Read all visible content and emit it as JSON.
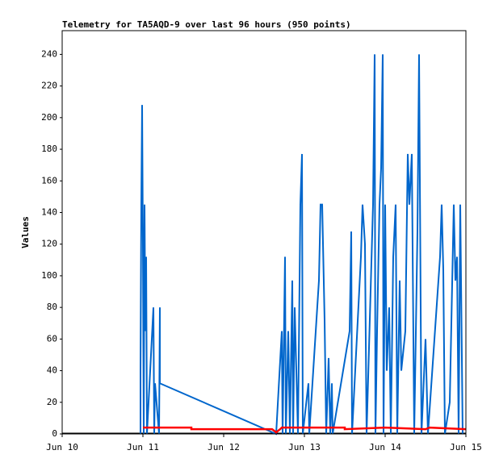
{
  "chart_data": {
    "type": "line",
    "title": "Telemetry for TA5AQD-9 over last 96 hours (950 points)",
    "y_label": "Values",
    "xlim": [
      10,
      15
    ],
    "xticks": [
      {
        "value": 10,
        "label": "Jun 10"
      },
      {
        "value": 11,
        "label": "Jun 11"
      },
      {
        "value": 12,
        "label": "Jun 12"
      },
      {
        "value": 13,
        "label": "Jun 13"
      },
      {
        "value": 14,
        "label": "Jun 14"
      },
      {
        "value": 15,
        "label": "Jun 15"
      }
    ],
    "ylim": [
      0,
      255
    ],
    "yticks": [
      0,
      20,
      40,
      60,
      80,
      100,
      120,
      140,
      160,
      180,
      200,
      220,
      240
    ],
    "grid": false,
    "series": [
      {
        "color": "#0066cc",
        "x": [
          10.97,
          10.97,
          10.98,
          10.99,
          11.0,
          11.01,
          11.02,
          11.03,
          11.04,
          11.05,
          11.13,
          11.14,
          11.15,
          11.2,
          11.21,
          11.21,
          12.65,
          12.72,
          12.73,
          12.76,
          12.77,
          12.8,
          12.82,
          12.85,
          12.86,
          12.88,
          12.9,
          12.92,
          12.95,
          12.97,
          12.98,
          13.05,
          13.06,
          13.18,
          13.2,
          13.22,
          13.25,
          13.27,
          13.3,
          13.32,
          13.34,
          13.35,
          13.56,
          13.58,
          13.59,
          13.7,
          13.72,
          13.75,
          13.77,
          13.85,
          13.87,
          13.88,
          13.9,
          13.93,
          13.95,
          13.97,
          13.98,
          14.0,
          14.02,
          14.05,
          14.07,
          14.1,
          14.13,
          14.15,
          14.18,
          14.2,
          14.25,
          14.28,
          14.3,
          14.33,
          14.36,
          14.4,
          14.42,
          14.45,
          14.5,
          14.53,
          14.68,
          14.7,
          14.72,
          14.74,
          14.8,
          14.85,
          14.87,
          14.89,
          14.91,
          14.93,
          14.96
        ],
        "values": [
          0,
          40,
          145,
          208,
          120,
          0,
          145,
          65,
          112,
          0,
          80,
          0,
          32,
          0,
          80,
          32,
          0,
          65,
          0,
          112,
          0,
          65,
          0,
          97,
          0,
          80,
          40,
          0,
          145,
          177,
          0,
          32,
          0,
          97,
          145,
          145,
          72,
          0,
          48,
          0,
          32,
          0,
          65,
          128,
          0,
          112,
          145,
          120,
          0,
          145,
          240,
          0,
          65,
          145,
          168,
          240,
          0,
          145,
          40,
          80,
          0,
          112,
          145,
          0,
          97,
          40,
          65,
          177,
          145,
          177,
          0,
          128,
          240,
          0,
          60,
          0,
          112,
          145,
          104,
          0,
          20,
          145,
          97,
          112,
          0,
          145,
          0
        ]
      },
      {
        "color": "#ff0000",
        "x": [
          11.0,
          11.6,
          11.6,
          12.6,
          12.65,
          12.7,
          12.72,
          13.5,
          13.5,
          14.0,
          14.5,
          14.55,
          15.0
        ],
        "values": [
          4,
          4,
          3,
          3,
          1,
          3,
          4,
          4,
          3,
          4,
          3,
          4,
          3
        ]
      }
    ]
  }
}
